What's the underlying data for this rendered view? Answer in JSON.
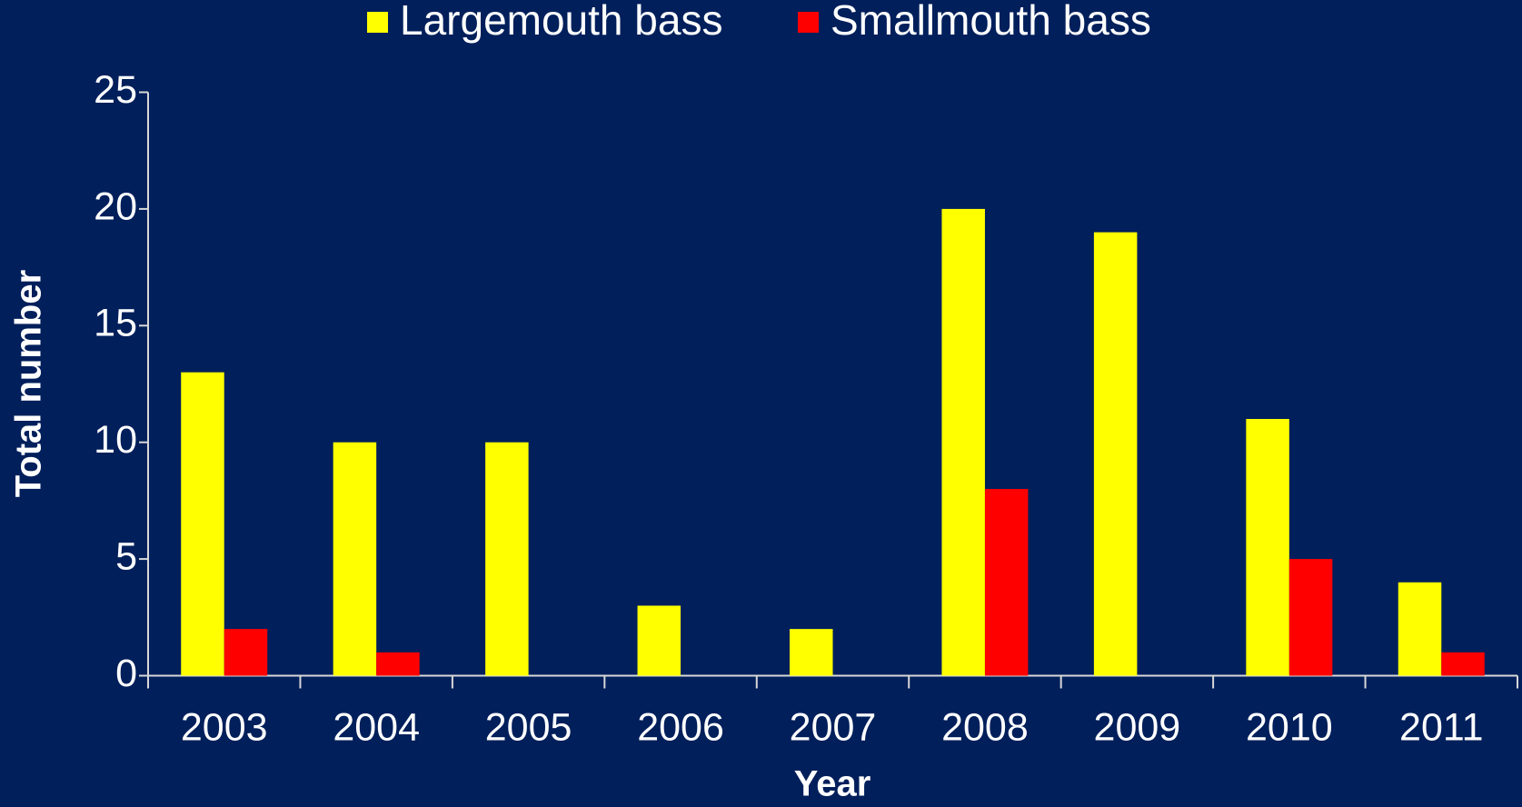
{
  "chart_data": {
    "type": "bar",
    "categories": [
      "2003",
      "2004",
      "2005",
      "2006",
      "2007",
      "2008",
      "2009",
      "2010",
      "2011"
    ],
    "series": [
      {
        "name": "Largemouth bass",
        "color": "#ffff00",
        "values": [
          13,
          10,
          10,
          3,
          2,
          20,
          19,
          11,
          4
        ]
      },
      {
        "name": "Smallmouth bass",
        "color": "#ff0000",
        "values": [
          2,
          1,
          0,
          0,
          0,
          8,
          0,
          5,
          1
        ]
      }
    ],
    "xlabel": "Year",
    "ylabel": "Total number",
    "ylim": [
      0,
      25
    ],
    "yticks": [
      0,
      5,
      10,
      15,
      20,
      25
    ],
    "grid": false,
    "legend": "top"
  }
}
